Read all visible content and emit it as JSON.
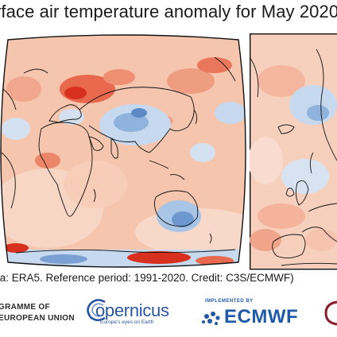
{
  "title": "rface air temperature anomaly for May 2020",
  "caption": "ta: ERA5.  Reference period: 1991-2020.  Credit: C3S/ECMWF)",
  "logos": {
    "eu_line1": "GRAMME OF",
    "eu_line2": "EUROPEAN UNION",
    "copernicus_word": "opernicus",
    "copernicus_tagline": "Europe's eyes on Earth",
    "ecmwf_implemented": "IMPLEMENTED BY",
    "ecmwf_word": "ECMWF"
  },
  "colors": {
    "warm_strong": "#d7301f",
    "warm_light": "#f6c8b2",
    "cool_light": "#c6d9ee",
    "cool_strong": "#3f72b8",
    "coast": "#111111",
    "copernicus_blue": "#2a55a0",
    "ecmwf_blue": "#1e5aa8"
  },
  "icons": {
    "copernicus": "copernicus-logo-icon",
    "ecmwf": "ecmwf-logo-icon",
    "partner": "partner-logo-icon"
  }
}
